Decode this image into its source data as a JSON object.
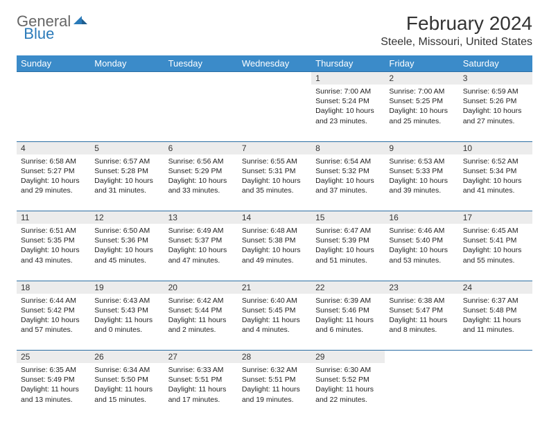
{
  "brand": {
    "part1": "General",
    "part2": "Blue"
  },
  "title": "February 2024",
  "location": "Steele, Missouri, United States",
  "colors": {
    "header_bg": "#3b8bc9",
    "header_fg": "#ffffff",
    "daynum_bg": "#ececec",
    "rule": "#2a6da3",
    "brand_blue": "#2a7ab9",
    "brand_gray": "#666666"
  },
  "day_names": [
    "Sunday",
    "Monday",
    "Tuesday",
    "Wednesday",
    "Thursday",
    "Friday",
    "Saturday"
  ],
  "weeks": [
    [
      {
        "n": "",
        "empty": true
      },
      {
        "n": "",
        "empty": true
      },
      {
        "n": "",
        "empty": true
      },
      {
        "n": "",
        "empty": true
      },
      {
        "n": "1",
        "sunrise": "7:00 AM",
        "sunset": "5:24 PM",
        "daylight": "10 hours and 23 minutes."
      },
      {
        "n": "2",
        "sunrise": "7:00 AM",
        "sunset": "5:25 PM",
        "daylight": "10 hours and 25 minutes."
      },
      {
        "n": "3",
        "sunrise": "6:59 AM",
        "sunset": "5:26 PM",
        "daylight": "10 hours and 27 minutes."
      }
    ],
    [
      {
        "n": "4",
        "sunrise": "6:58 AM",
        "sunset": "5:27 PM",
        "daylight": "10 hours and 29 minutes."
      },
      {
        "n": "5",
        "sunrise": "6:57 AM",
        "sunset": "5:28 PM",
        "daylight": "10 hours and 31 minutes."
      },
      {
        "n": "6",
        "sunrise": "6:56 AM",
        "sunset": "5:29 PM",
        "daylight": "10 hours and 33 minutes."
      },
      {
        "n": "7",
        "sunrise": "6:55 AM",
        "sunset": "5:31 PM",
        "daylight": "10 hours and 35 minutes."
      },
      {
        "n": "8",
        "sunrise": "6:54 AM",
        "sunset": "5:32 PM",
        "daylight": "10 hours and 37 minutes."
      },
      {
        "n": "9",
        "sunrise": "6:53 AM",
        "sunset": "5:33 PM",
        "daylight": "10 hours and 39 minutes."
      },
      {
        "n": "10",
        "sunrise": "6:52 AM",
        "sunset": "5:34 PM",
        "daylight": "10 hours and 41 minutes."
      }
    ],
    [
      {
        "n": "11",
        "sunrise": "6:51 AM",
        "sunset": "5:35 PM",
        "daylight": "10 hours and 43 minutes."
      },
      {
        "n": "12",
        "sunrise": "6:50 AM",
        "sunset": "5:36 PM",
        "daylight": "10 hours and 45 minutes."
      },
      {
        "n": "13",
        "sunrise": "6:49 AM",
        "sunset": "5:37 PM",
        "daylight": "10 hours and 47 minutes."
      },
      {
        "n": "14",
        "sunrise": "6:48 AM",
        "sunset": "5:38 PM",
        "daylight": "10 hours and 49 minutes."
      },
      {
        "n": "15",
        "sunrise": "6:47 AM",
        "sunset": "5:39 PM",
        "daylight": "10 hours and 51 minutes."
      },
      {
        "n": "16",
        "sunrise": "6:46 AM",
        "sunset": "5:40 PM",
        "daylight": "10 hours and 53 minutes."
      },
      {
        "n": "17",
        "sunrise": "6:45 AM",
        "sunset": "5:41 PM",
        "daylight": "10 hours and 55 minutes."
      }
    ],
    [
      {
        "n": "18",
        "sunrise": "6:44 AM",
        "sunset": "5:42 PM",
        "daylight": "10 hours and 57 minutes."
      },
      {
        "n": "19",
        "sunrise": "6:43 AM",
        "sunset": "5:43 PM",
        "daylight": "11 hours and 0 minutes."
      },
      {
        "n": "20",
        "sunrise": "6:42 AM",
        "sunset": "5:44 PM",
        "daylight": "11 hours and 2 minutes."
      },
      {
        "n": "21",
        "sunrise": "6:40 AM",
        "sunset": "5:45 PM",
        "daylight": "11 hours and 4 minutes."
      },
      {
        "n": "22",
        "sunrise": "6:39 AM",
        "sunset": "5:46 PM",
        "daylight": "11 hours and 6 minutes."
      },
      {
        "n": "23",
        "sunrise": "6:38 AM",
        "sunset": "5:47 PM",
        "daylight": "11 hours and 8 minutes."
      },
      {
        "n": "24",
        "sunrise": "6:37 AM",
        "sunset": "5:48 PM",
        "daylight": "11 hours and 11 minutes."
      }
    ],
    [
      {
        "n": "25",
        "sunrise": "6:35 AM",
        "sunset": "5:49 PM",
        "daylight": "11 hours and 13 minutes."
      },
      {
        "n": "26",
        "sunrise": "6:34 AM",
        "sunset": "5:50 PM",
        "daylight": "11 hours and 15 minutes."
      },
      {
        "n": "27",
        "sunrise": "6:33 AM",
        "sunset": "5:51 PM",
        "daylight": "11 hours and 17 minutes."
      },
      {
        "n": "28",
        "sunrise": "6:32 AM",
        "sunset": "5:51 PM",
        "daylight": "11 hours and 19 minutes."
      },
      {
        "n": "29",
        "sunrise": "6:30 AM",
        "sunset": "5:52 PM",
        "daylight": "11 hours and 22 minutes."
      },
      {
        "n": "",
        "empty": true
      },
      {
        "n": "",
        "empty": true
      }
    ]
  ],
  "labels": {
    "sunrise": "Sunrise:",
    "sunset": "Sunset:",
    "daylight": "Daylight:"
  }
}
